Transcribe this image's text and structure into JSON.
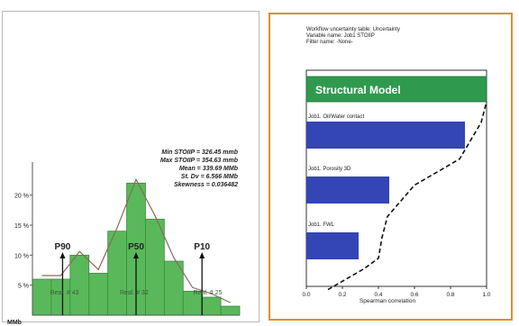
{
  "chart_data": [
    {
      "type": "bar",
      "stats": [
        {
          "label": "Min STOIIP",
          "value": "326.45 mmb"
        },
        {
          "label": "Max STOIIP",
          "value": "354.63 mmb"
        },
        {
          "label": "Mean",
          "value": "339.69 MMb"
        },
        {
          "label": "St. Dv",
          "value": "6.566 MMb"
        },
        {
          "label": "Skewness",
          "value": "0.036482"
        }
      ],
      "yticks": [
        "20 %",
        "15 %",
        "10 %",
        "5 %"
      ],
      "yvalues": [
        20,
        15,
        10,
        5
      ],
      "ylim": [
        0,
        24
      ],
      "xlabel": "MMb",
      "bin_values": [
        6,
        6,
        10,
        7,
        14,
        22,
        16,
        9,
        4,
        3,
        1.5
      ],
      "markers": [
        {
          "label": "P90",
          "bin_index": 1.6
        },
        {
          "label": "P50",
          "bin_index": 5.5
        },
        {
          "label": "P10",
          "bin_index": 9.0
        }
      ],
      "realizations": [
        {
          "label": "Real. # 43",
          "bin_index": 1.7
        },
        {
          "label": "Real. # 32",
          "bin_index": 5.4
        },
        {
          "label": "Real. # 25",
          "bin_index": 9.3
        }
      ],
      "colors": {
        "bar": "#59b95a",
        "bar_edge": "#3d8a3f",
        "curve": "#8a6a5a"
      }
    },
    {
      "type": "bar",
      "header": [
        "Workflow uncertainty table: Uncertainty",
        "Variable name: Job1 STOIIP",
        "Filter name: -None-"
      ],
      "title": "Structural Model",
      "categories": [
        "Job1. Oil/Water contact",
        "Job1. Porosity 3D",
        "Job1. FWL"
      ],
      "values": [
        0.88,
        0.46,
        0.29
      ],
      "xlabel": "Spearman correlation",
      "xlim": [
        0.0,
        1.0
      ],
      "xticks": [
        "0.0",
        "0.2",
        "0.4",
        "0.6",
        "0.8",
        "1.0"
      ],
      "cumulative_curve": [
        [
          0.12,
          -0.2
        ],
        [
          0.22,
          0.0
        ],
        [
          0.32,
          0.2
        ],
        [
          0.4,
          0.4
        ],
        [
          0.42,
          0.8
        ],
        [
          0.45,
          1.2
        ],
        [
          0.6,
          1.8
        ],
        [
          0.85,
          2.3
        ],
        [
          0.97,
          3.0
        ],
        [
          1.0,
          3.4
        ]
      ],
      "colors": {
        "bar": "#3445b4",
        "title_bg": "#2f9a4e",
        "title_text": "#ffffff",
        "frame": "#e28c2c"
      }
    }
  ]
}
